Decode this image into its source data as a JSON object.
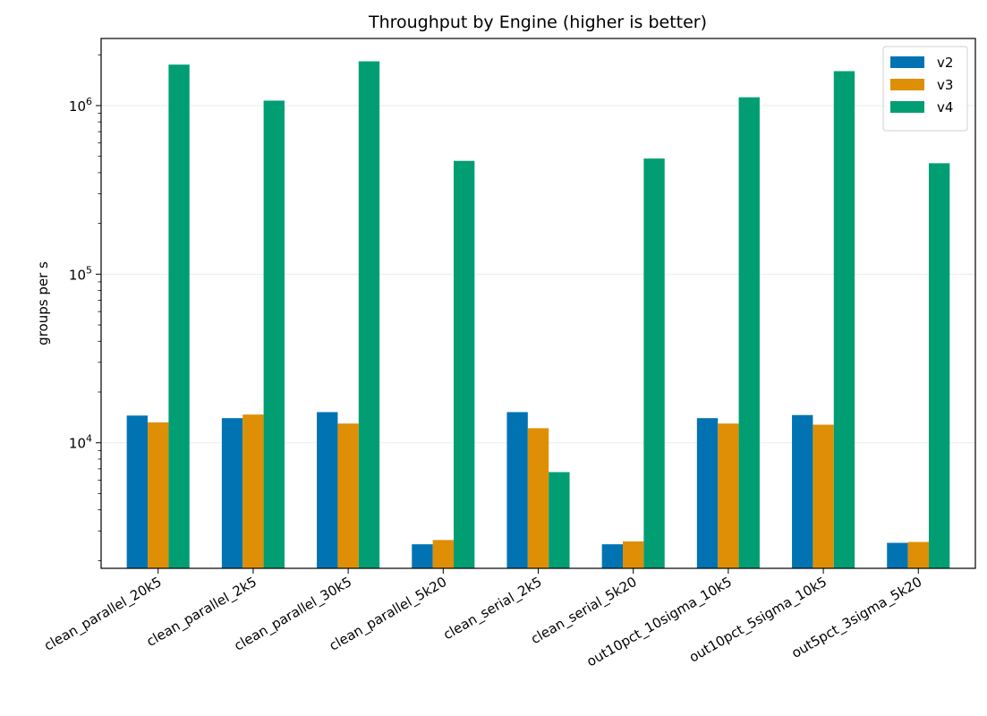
{
  "chart_data": {
    "type": "bar",
    "title": "Throughput by Engine (higher is better)",
    "xlabel": "",
    "ylabel": "groups per s",
    "yscale": "log",
    "ylim": [
      1800,
      2500000
    ],
    "yticks": [
      {
        "value": 10000,
        "base": "10",
        "exp": "4"
      },
      {
        "value": 100000,
        "base": "10",
        "exp": "5"
      },
      {
        "value": 1000000,
        "base": "10",
        "exp": "6"
      }
    ],
    "grid": "y-major",
    "legend_position": "top-right",
    "categories": [
      "clean_parallel_20k5",
      "clean_parallel_2k5",
      "clean_parallel_30k5",
      "clean_parallel_5k20",
      "clean_serial_2k5",
      "clean_serial_5k20",
      "out10pct_10sigma_10k5",
      "out10pct_5sigma_10k5",
      "out5pct_3sigma_5k20"
    ],
    "series": [
      {
        "name": "v2",
        "color": "#0173b2",
        "values": [
          14500,
          14000,
          15200,
          2500,
          15200,
          2500,
          14000,
          14600,
          2550
        ]
      },
      {
        "name": "v3",
        "color": "#de8f05",
        "values": [
          13200,
          14700,
          13000,
          2650,
          12200,
          2600,
          13000,
          12800,
          2580
        ]
      },
      {
        "name": "v4",
        "color": "#029e73",
        "values": [
          1750000,
          1070000,
          1830000,
          470000,
          6700,
          485000,
          1120000,
          1600000,
          455000
        ]
      }
    ]
  }
}
